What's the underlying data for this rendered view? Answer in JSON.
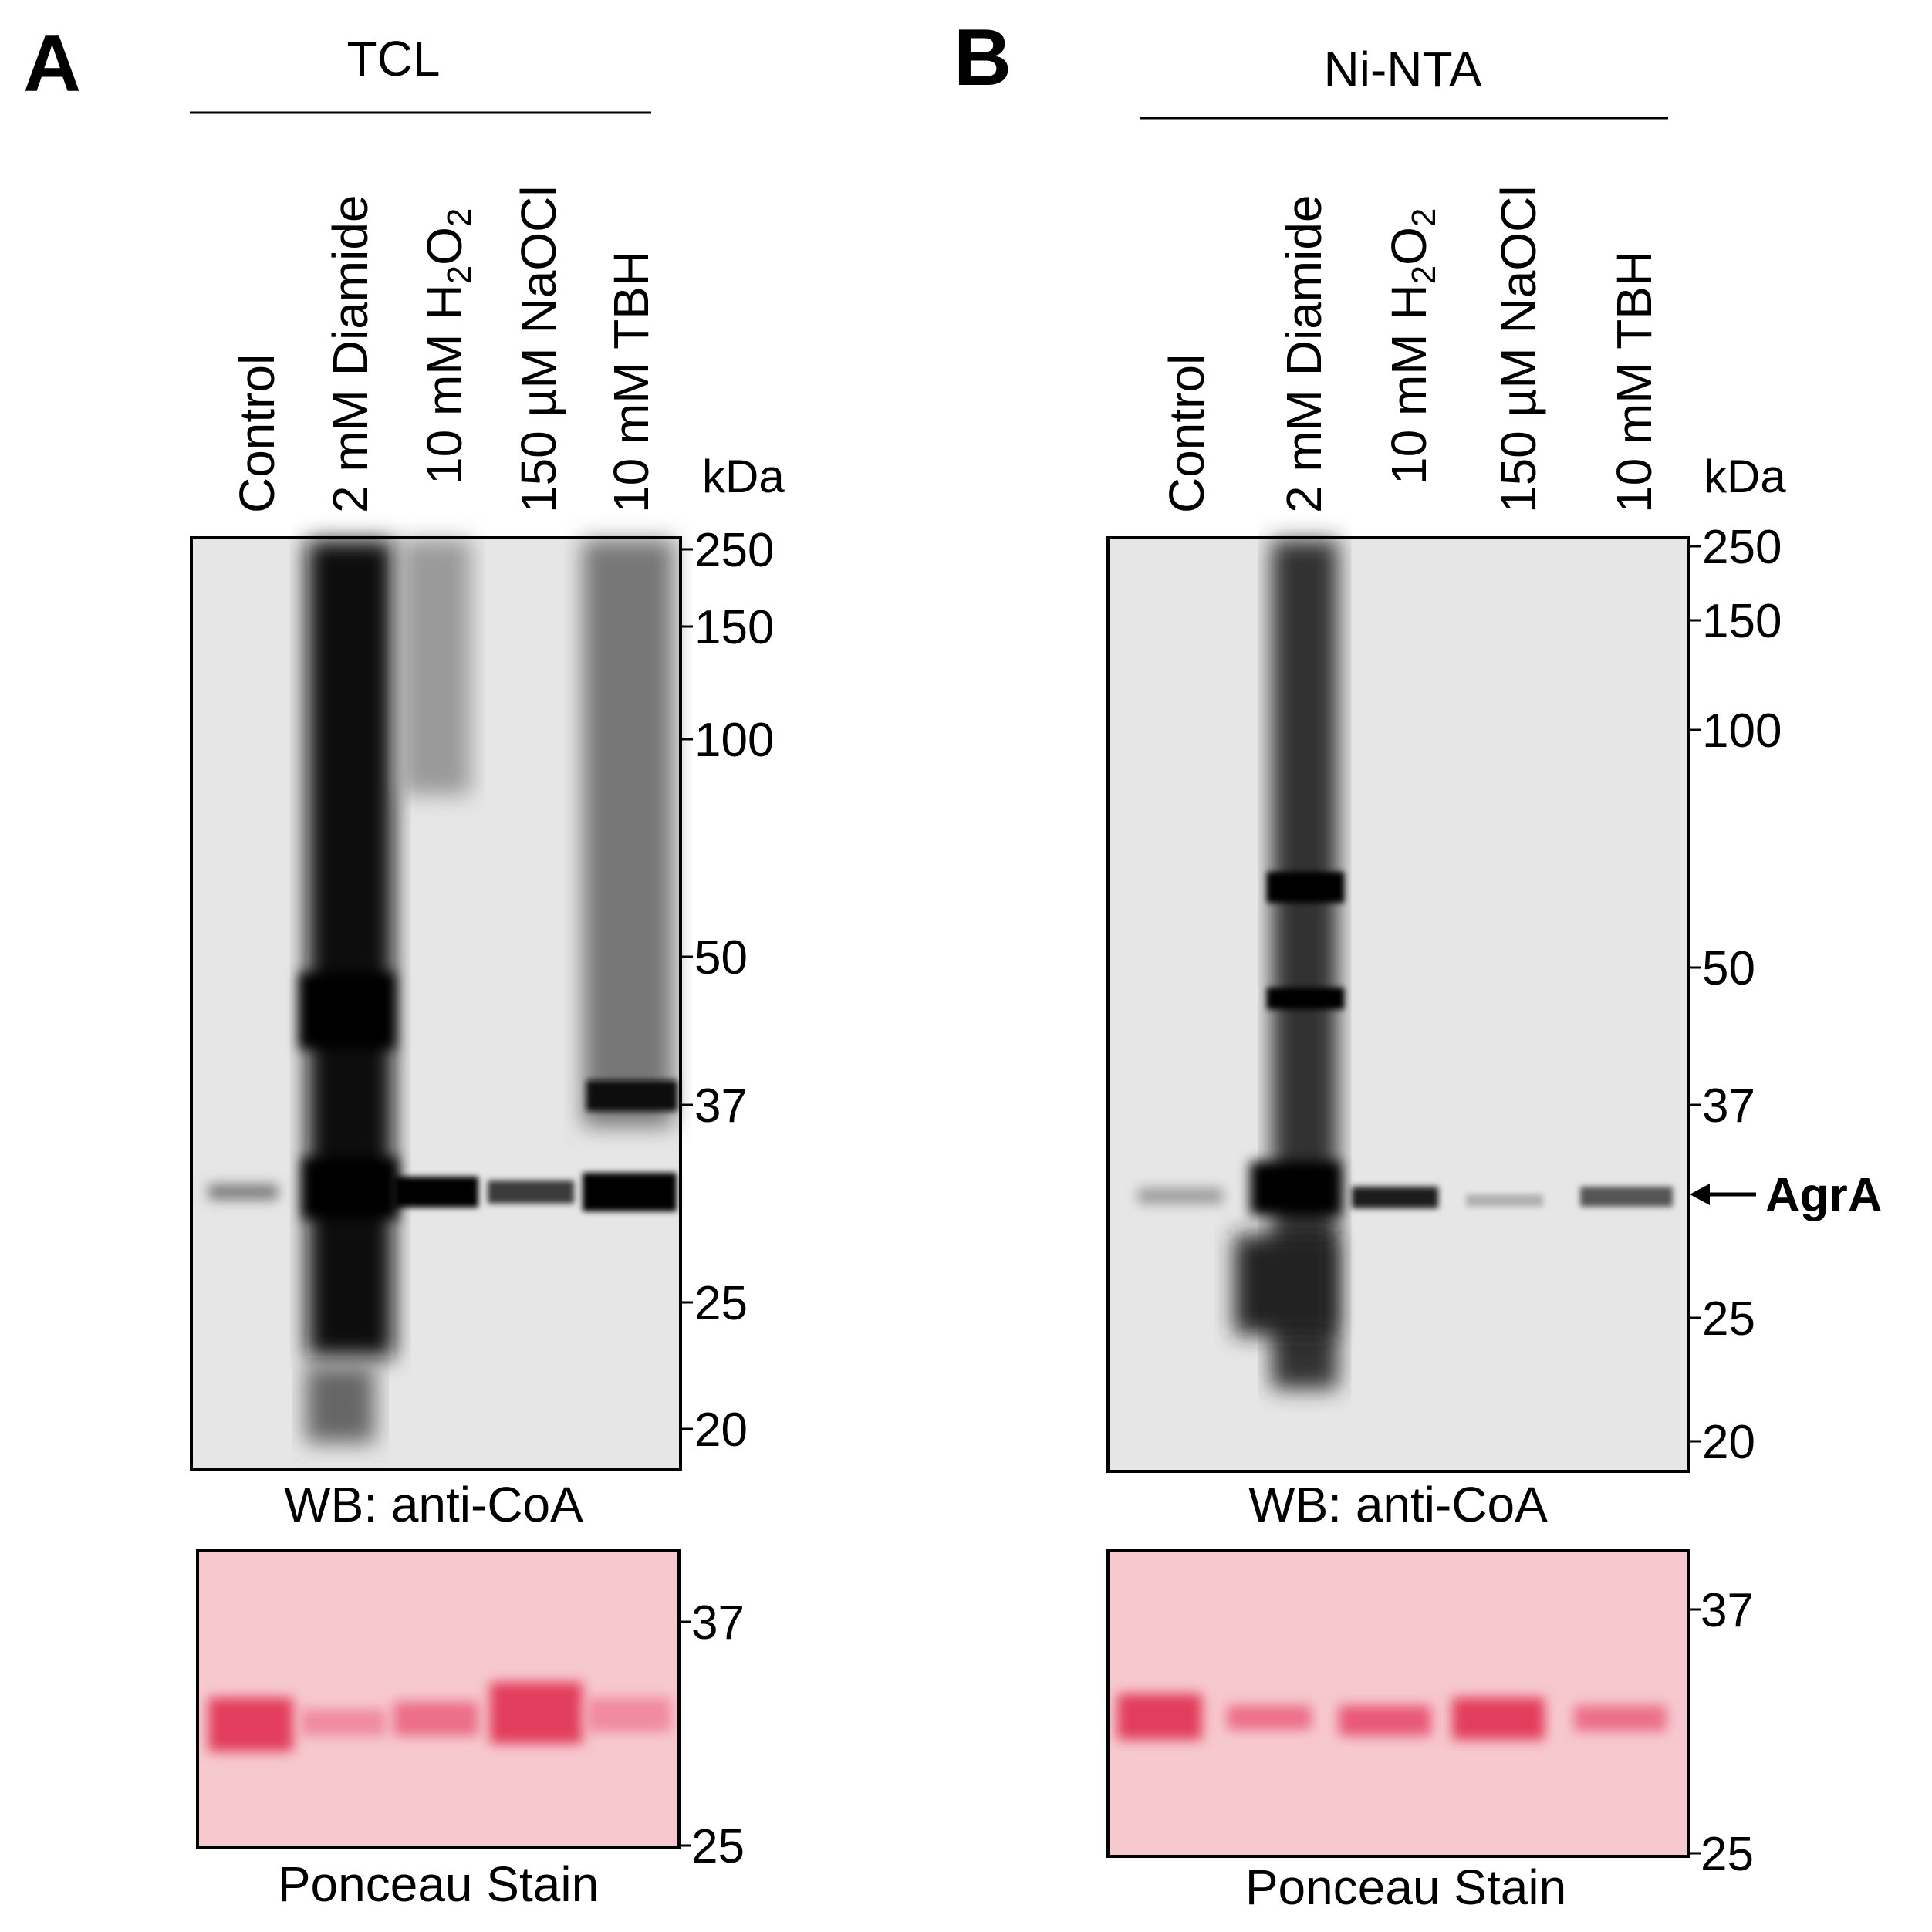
{
  "panels": [
    {
      "letter": "A",
      "group_label": "TCL",
      "lanes": [
        "Control",
        "2 mM Diamide",
        "10 mM H",
        "150 µM NaOCl",
        "10 mM TBH"
      ],
      "h2o2": {
        "prefix": "10 mM H",
        "sub1": "2",
        "mid": "O",
        "sub2": "2"
      },
      "kda_label": "kDa",
      "wb_markers": [
        "250",
        "150",
        "100",
        "50",
        "37",
        "25",
        "20"
      ],
      "wb_caption": "WB: anti-CoA",
      "stain_markers": [
        "37",
        "25"
      ],
      "stain_caption": "Ponceau Stain"
    },
    {
      "letter": "B",
      "group_label": "Ni-NTA",
      "lanes": [
        "Control",
        "2 mM Diamide",
        "10 mM H",
        "150 µM NaOCl",
        "10 mM TBH"
      ],
      "h2o2": {
        "prefix": "10 mM H",
        "sub1": "2",
        "mid": "O",
        "sub2": "2"
      },
      "kda_label": "kDa",
      "wb_markers": [
        "250",
        "150",
        "100",
        "50",
        "37",
        "25",
        "20"
      ],
      "wb_caption": "WB: anti-CoA",
      "stain_markers": [
        "37",
        "25"
      ],
      "stain_caption": "Ponceau Stain",
      "arrow_label": "AgrA"
    }
  ],
  "colors": {
    "wb_background": "#e6e6e6",
    "band": "#000000",
    "ponceau_background": "#f6c9cf",
    "ponceau_band": "#e23c5c"
  }
}
